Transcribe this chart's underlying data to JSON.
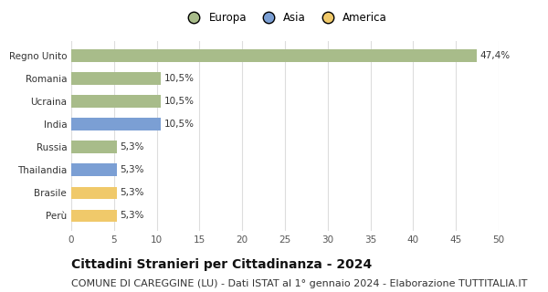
{
  "categories": [
    "Perù",
    "Brasile",
    "Thailandia",
    "Russia",
    "India",
    "Ucraina",
    "Romania",
    "Regno Unito"
  ],
  "values": [
    5.3,
    5.3,
    5.3,
    5.3,
    10.5,
    10.5,
    10.5,
    47.4
  ],
  "labels": [
    "5,3%",
    "5,3%",
    "5,3%",
    "5,3%",
    "10,5%",
    "10,5%",
    "10,5%",
    "47,4%"
  ],
  "colors": [
    "#f0c96a",
    "#f0c96a",
    "#7b9fd4",
    "#a8bc8a",
    "#7b9fd4",
    "#a8bc8a",
    "#a8bc8a",
    "#a8bc8a"
  ],
  "legend": [
    {
      "label": "Europa",
      "color": "#a8bc8a"
    },
    {
      "label": "Asia",
      "color": "#7b9fd4"
    },
    {
      "label": "America",
      "color": "#f0c96a"
    }
  ],
  "xlim": [
    0,
    50
  ],
  "xticks": [
    0,
    5,
    10,
    15,
    20,
    25,
    30,
    35,
    40,
    45,
    50
  ],
  "title": "Cittadini Stranieri per Cittadinanza - 2024",
  "subtitle": "COMUNE DI CAREGGINE (LU) - Dati ISTAT al 1° gennaio 2024 - Elaborazione TUTTITALIA.IT",
  "title_fontsize": 10,
  "subtitle_fontsize": 8,
  "label_fontsize": 7.5,
  "tick_fontsize": 7.5,
  "legend_fontsize": 8.5,
  "bg_color": "#ffffff",
  "grid_color": "#dddddd"
}
